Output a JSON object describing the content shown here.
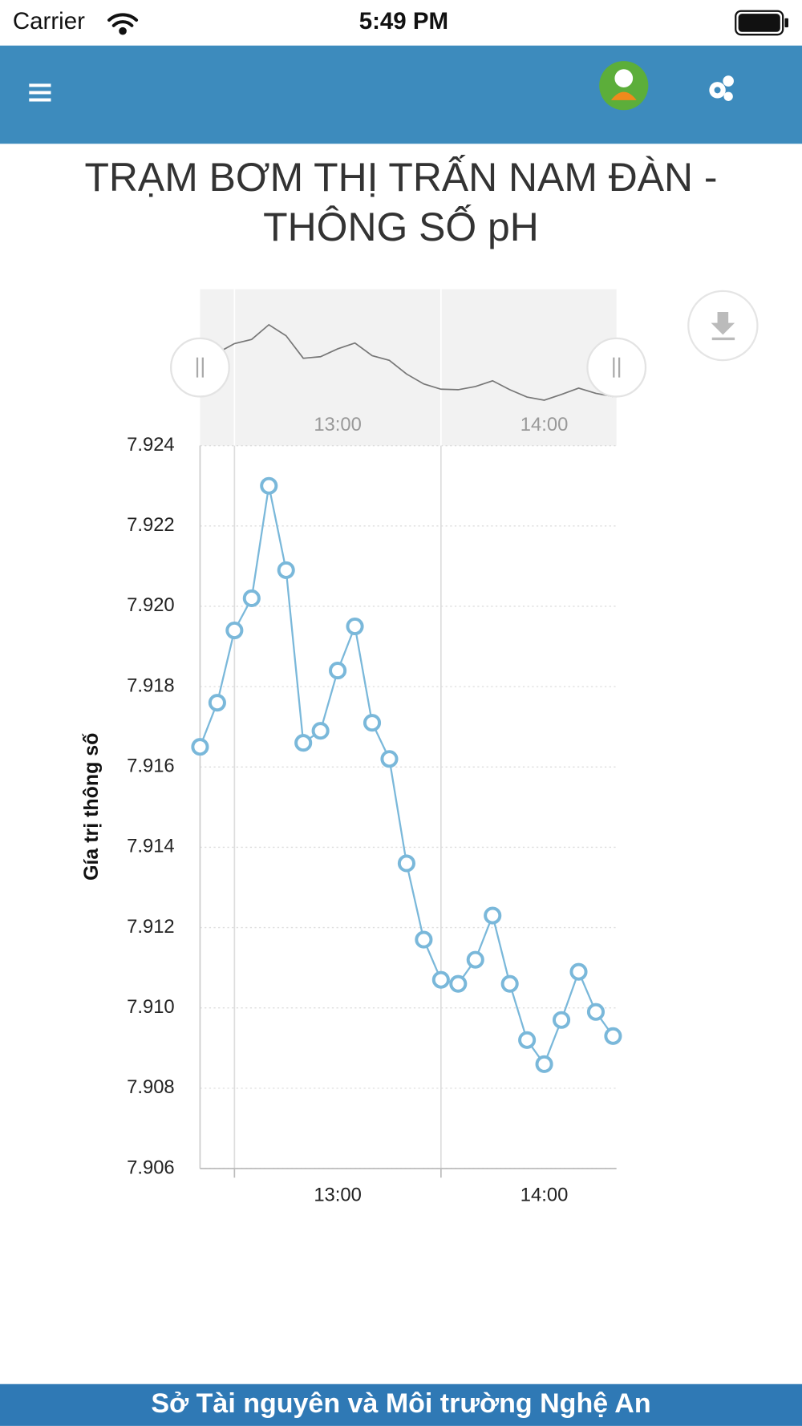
{
  "status_bar": {
    "carrier": "Carrier",
    "time": "5:49 PM"
  },
  "footer": {
    "text": "Sở Tài nguyên và Môi trường Nghệ An"
  },
  "chart_data": {
    "type": "line",
    "title": [
      "TRẠM BƠM THỊ TRẤN NAM ĐÀN -",
      "THÔNG SỐ pH"
    ],
    "y_label": "Gía trị thông số",
    "x": [
      740,
      745,
      750,
      755,
      760,
      765,
      770,
      775,
      780,
      785,
      790,
      795,
      800,
      805,
      810,
      815,
      820,
      825,
      830,
      835,
      840,
      845,
      850,
      855,
      860
    ],
    "series": [
      {
        "color": "#7ab8da",
        "values": [
          7.9165,
          7.9176,
          7.9194,
          7.9202,
          7.923,
          7.9209,
          7.9166,
          7.9169,
          7.9184,
          7.9195,
          7.9171,
          7.9162,
          7.9136,
          7.9117,
          7.9107,
          7.9106,
          7.9112,
          7.9123,
          7.9106,
          7.9092,
          7.9086,
          7.9097,
          7.9109,
          7.9099,
          7.9093
        ]
      }
    ],
    "xlim": [
      740,
      861
    ],
    "xticks": [
      {
        "value": 780,
        "label": "13:00"
      },
      {
        "value": 840,
        "label": "14:00"
      }
    ],
    "xgridlines": [
      750,
      810
    ],
    "ylim": [
      7.906,
      7.924
    ],
    "yticks": [
      7.906,
      7.908,
      {
        "value": 7.91,
        "label": "7.910"
      },
      7.912,
      7.914,
      7.916,
      7.918,
      {
        "value": 7.92,
        "label": "7.920"
      },
      7.922,
      7.924
    ],
    "grid": true,
    "navigator": true
  }
}
